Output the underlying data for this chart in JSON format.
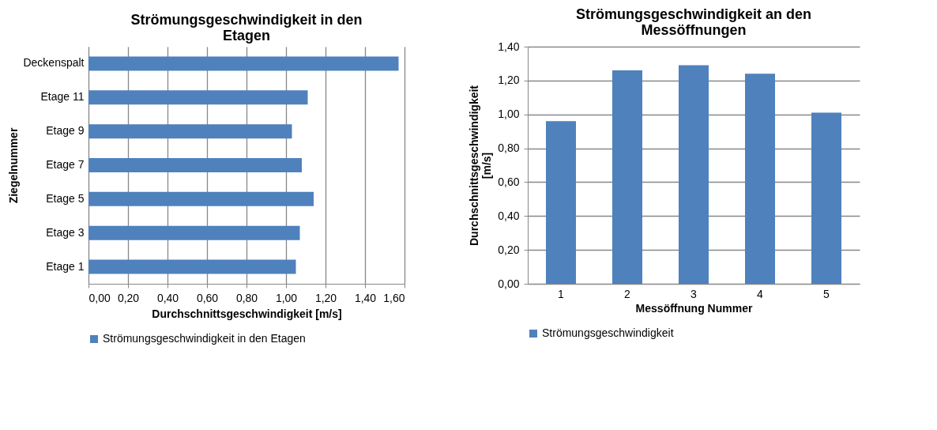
{
  "chart_data": [
    {
      "type": "bar",
      "orientation": "horizontal",
      "title": "Strömungsgeschwindigkeit in den Etagen",
      "xlabel": "Durchschnittsgeschwindigkeit [m/s]",
      "ylabel": "Ziegelnummer",
      "categories": [
        "Deckenspalt",
        "Etage 11",
        "Etage 9",
        "Etage 7",
        "Etage 5",
        "Etage 3",
        "Etage 1"
      ],
      "series": [
        {
          "name": "Strömungsgeschwindigkeit in den Etagen",
          "color": "#4f81bd",
          "values": [
            1.57,
            1.11,
            1.03,
            1.08,
            1.14,
            1.07,
            1.05
          ]
        }
      ],
      "xlim": [
        0,
        1.6
      ],
      "xticks": [
        {
          "value": 0,
          "label": "0,00"
        },
        {
          "value": 0.2,
          "label": "0,20"
        },
        {
          "value": 0.4,
          "label": "0,40"
        },
        {
          "value": 0.6,
          "label": "0,60"
        },
        {
          "value": 0.8,
          "label": "0,80"
        },
        {
          "value": 1.0,
          "label": "1,00"
        },
        {
          "value": 1.2,
          "label": "1,20"
        },
        {
          "value": 1.4,
          "label": "1,40"
        },
        {
          "value": 1.6,
          "label": "1,60"
        }
      ],
      "grid": "x",
      "legend": "bottom"
    },
    {
      "type": "bar",
      "title": "Strömungsgeschwindigkeit an den Messöffnungen",
      "xlabel": "Messöffnung Nummer",
      "ylabel": "Durchschnittsgeschwindigkeit [m/s]",
      "categories": [
        "1",
        "2",
        "3",
        "4",
        "5"
      ],
      "series": [
        {
          "name": "Strömungsgeschwindigkeit",
          "color": "#4f81bd",
          "values": [
            0.96,
            1.26,
            1.29,
            1.24,
            1.01
          ]
        }
      ],
      "ylim": [
        0,
        1.4
      ],
      "yticks": [
        {
          "value": 0,
          "label": "0,00"
        },
        {
          "value": 0.2,
          "label": "0,20"
        },
        {
          "value": 0.4,
          "label": "0,40"
        },
        {
          "value": 0.6,
          "label": "0,60"
        },
        {
          "value": 0.8,
          "label": "0,80"
        },
        {
          "value": 1.0,
          "label": "1,00"
        },
        {
          "value": 1.2,
          "label": "1,20"
        },
        {
          "value": 1.4,
          "label": "1,40"
        }
      ],
      "grid": "y",
      "legend": "bottom"
    }
  ]
}
